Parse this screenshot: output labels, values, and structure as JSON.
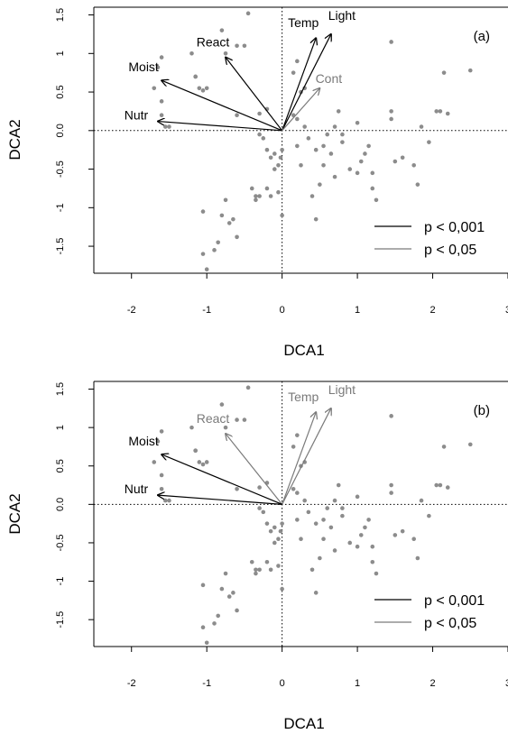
{
  "chart_data": [
    {
      "type": "scatter",
      "panel_label": "(a)",
      "xlabel": "DCA1",
      "ylabel": "DCA2",
      "xlim": [
        -2.5,
        3.0
      ],
      "ylim": [
        -1.85,
        1.6
      ],
      "xticks": [
        -2,
        -1,
        0,
        1,
        2,
        3
      ],
      "yticks": [
        -1.5,
        -1.0,
        -0.5,
        0.0,
        0.5,
        1.0,
        1.5
      ],
      "reference_lines": {
        "x": 0,
        "y": 0,
        "style": "dotted"
      },
      "colors": {
        "points": "#8c8c8c",
        "strong": "#000000",
        "weak": "#7a7a7a"
      },
      "points": [
        [
          -1.7,
          0.55
        ],
        [
          -1.6,
          0.95
        ],
        [
          -1.6,
          0.2
        ],
        [
          -1.5,
          0.05
        ],
        [
          -1.55,
          0.05
        ],
        [
          -1.65,
          0.82
        ],
        [
          -1.6,
          0.38
        ],
        [
          -1.2,
          1.0
        ],
        [
          -1.15,
          0.7
        ],
        [
          -1.1,
          0.55
        ],
        [
          -1.05,
          0.52
        ],
        [
          -1.0,
          0.55
        ],
        [
          -1.15,
          0.7
        ],
        [
          -0.8,
          1.3
        ],
        [
          -0.75,
          1.0
        ],
        [
          -0.6,
          1.1
        ],
        [
          -0.5,
          1.1
        ],
        [
          -0.45,
          1.52
        ],
        [
          -0.6,
          0.2
        ],
        [
          -0.3,
          0.22
        ],
        [
          -0.2,
          0.28
        ],
        [
          -0.3,
          -0.05
        ],
        [
          -0.25,
          -0.1
        ],
        [
          -0.15,
          -0.35
        ],
        [
          -0.1,
          -0.3
        ],
        [
          -0.2,
          -0.25
        ],
        [
          -0.05,
          -0.45
        ],
        [
          -0.1,
          -0.5
        ],
        [
          -0.02,
          -0.35
        ],
        [
          0.0,
          -0.25
        ],
        [
          -0.35,
          -0.85
        ],
        [
          -0.4,
          -0.75
        ],
        [
          -0.35,
          -0.9
        ],
        [
          -0.3,
          -0.85
        ],
        [
          -0.2,
          -0.75
        ],
        [
          -0.15,
          -0.85
        ],
        [
          -0.05,
          -0.8
        ],
        [
          0.0,
          -1.1
        ],
        [
          -0.75,
          -0.9
        ],
        [
          -0.8,
          -1.1
        ],
        [
          -0.65,
          -1.15
        ],
        [
          -0.7,
          -1.2
        ],
        [
          -1.05,
          -1.05
        ],
        [
          -1.05,
          -1.6
        ],
        [
          -1.0,
          -1.8
        ],
        [
          -0.9,
          -1.55
        ],
        [
          -0.85,
          -1.45
        ],
        [
          -0.6,
          -1.38
        ],
        [
          0.15,
          0.75
        ],
        [
          0.2,
          0.9
        ],
        [
          0.25,
          0.5
        ],
        [
          0.3,
          0.55
        ],
        [
          0.2,
          0.15
        ],
        [
          0.3,
          0.05
        ],
        [
          0.15,
          0.2
        ],
        [
          0.2,
          -0.2
        ],
        [
          0.25,
          -0.45
        ],
        [
          0.35,
          -0.1
        ],
        [
          0.45,
          -0.25
        ],
        [
          0.55,
          -0.2
        ],
        [
          0.6,
          -0.05
        ],
        [
          0.65,
          -0.3
        ],
        [
          0.7,
          -0.6
        ],
        [
          0.55,
          -0.45
        ],
        [
          0.4,
          -0.85
        ],
        [
          0.45,
          -1.15
        ],
        [
          0.5,
          -0.7
        ],
        [
          0.8,
          -0.15
        ],
        [
          0.7,
          0.05
        ],
        [
          0.8,
          -0.05
        ],
        [
          0.9,
          -0.5
        ],
        [
          1.0,
          -0.55
        ],
        [
          1.05,
          -0.4
        ],
        [
          1.1,
          -0.3
        ],
        [
          1.15,
          -0.2
        ],
        [
          1.2,
          -0.55
        ],
        [
          1.25,
          -0.9
        ],
        [
          1.2,
          -0.75
        ],
        [
          0.75,
          0.25
        ],
        [
          1.0,
          0.1
        ],
        [
          1.45,
          1.15
        ],
        [
          1.45,
          0.25
        ],
        [
          1.45,
          0.15
        ],
        [
          1.5,
          -0.4
        ],
        [
          1.6,
          -0.35
        ],
        [
          1.75,
          -0.45
        ],
        [
          1.8,
          -0.7
        ],
        [
          1.85,
          0.05
        ],
        [
          1.95,
          -0.15
        ],
        [
          2.05,
          0.25
        ],
        [
          2.1,
          0.25
        ],
        [
          2.2,
          0.22
        ],
        [
          2.15,
          0.75
        ],
        [
          2.5,
          0.78
        ]
      ],
      "vectors": [
        {
          "label": "Light",
          "x": 0.65,
          "y": 1.25,
          "significance": "p < 0,001"
        },
        {
          "label": "Temp",
          "x": 0.45,
          "y": 1.2,
          "significance": "p < 0,001"
        },
        {
          "label": "React",
          "x": -0.75,
          "y": 0.95,
          "significance": "p < 0,001"
        },
        {
          "label": "Moist",
          "x": -1.6,
          "y": 0.65,
          "significance": "p < 0,001"
        },
        {
          "label": "Nutr",
          "x": -1.65,
          "y": 0.12,
          "significance": "p < 0,001"
        },
        {
          "label": "Cont",
          "x": 0.5,
          "y": 0.55,
          "significance": "p < 0,05"
        }
      ],
      "legend": {
        "placement": "bottom-right",
        "entries": [
          {
            "label": "p < 0,001",
            "color": "#000000"
          },
          {
            "label": "p < 0,05",
            "color": "#7a7a7a"
          }
        ]
      }
    },
    {
      "type": "scatter",
      "panel_label": "(b)",
      "xlabel": "DCA1",
      "ylabel": "DCA2",
      "xlim": [
        -2.5,
        3.0
      ],
      "ylim": [
        -1.85,
        1.6
      ],
      "xticks": [
        -2,
        -1,
        0,
        1,
        2,
        3
      ],
      "yticks": [
        -1.5,
        -1.0,
        -0.5,
        0.0,
        0.5,
        1.0,
        1.5
      ],
      "reference_lines": {
        "x": 0,
        "y": 0,
        "style": "dotted"
      },
      "colors": {
        "points": "#8c8c8c",
        "strong": "#000000",
        "weak": "#7a7a7a"
      },
      "points": [
        [
          -1.7,
          0.55
        ],
        [
          -1.6,
          0.95
        ],
        [
          -1.6,
          0.2
        ],
        [
          -1.5,
          0.05
        ],
        [
          -1.55,
          0.05
        ],
        [
          -1.65,
          0.82
        ],
        [
          -1.6,
          0.38
        ],
        [
          -1.2,
          1.0
        ],
        [
          -1.15,
          0.7
        ],
        [
          -1.1,
          0.55
        ],
        [
          -1.05,
          0.52
        ],
        [
          -1.0,
          0.55
        ],
        [
          -1.15,
          0.7
        ],
        [
          -0.8,
          1.3
        ],
        [
          -0.75,
          1.0
        ],
        [
          -0.6,
          1.1
        ],
        [
          -0.5,
          1.1
        ],
        [
          -0.45,
          1.52
        ],
        [
          -0.6,
          0.2
        ],
        [
          -0.3,
          0.22
        ],
        [
          -0.2,
          0.28
        ],
        [
          -0.3,
          -0.05
        ],
        [
          -0.25,
          -0.1
        ],
        [
          -0.15,
          -0.35
        ],
        [
          -0.1,
          -0.3
        ],
        [
          -0.2,
          -0.25
        ],
        [
          -0.05,
          -0.45
        ],
        [
          -0.1,
          -0.5
        ],
        [
          -0.02,
          -0.35
        ],
        [
          0.0,
          -0.25
        ],
        [
          -0.35,
          -0.85
        ],
        [
          -0.4,
          -0.75
        ],
        [
          -0.35,
          -0.9
        ],
        [
          -0.3,
          -0.85
        ],
        [
          -0.2,
          -0.75
        ],
        [
          -0.15,
          -0.85
        ],
        [
          -0.05,
          -0.8
        ],
        [
          0.0,
          -1.1
        ],
        [
          -0.75,
          -0.9
        ],
        [
          -0.8,
          -1.1
        ],
        [
          -0.65,
          -1.15
        ],
        [
          -0.7,
          -1.2
        ],
        [
          -1.05,
          -1.05
        ],
        [
          -1.05,
          -1.6
        ],
        [
          -1.0,
          -1.8
        ],
        [
          -0.9,
          -1.55
        ],
        [
          -0.85,
          -1.45
        ],
        [
          -0.6,
          -1.38
        ],
        [
          0.15,
          0.75
        ],
        [
          0.2,
          0.9
        ],
        [
          0.25,
          0.5
        ],
        [
          0.3,
          0.55
        ],
        [
          0.2,
          0.15
        ],
        [
          0.3,
          0.05
        ],
        [
          0.15,
          0.2
        ],
        [
          0.2,
          -0.2
        ],
        [
          0.25,
          -0.45
        ],
        [
          0.35,
          -0.1
        ],
        [
          0.45,
          -0.25
        ],
        [
          0.55,
          -0.2
        ],
        [
          0.6,
          -0.05
        ],
        [
          0.65,
          -0.3
        ],
        [
          0.7,
          -0.6
        ],
        [
          0.55,
          -0.45
        ],
        [
          0.4,
          -0.85
        ],
        [
          0.45,
          -1.15
        ],
        [
          0.5,
          -0.7
        ],
        [
          0.8,
          -0.15
        ],
        [
          0.7,
          0.05
        ],
        [
          0.8,
          -0.05
        ],
        [
          0.9,
          -0.5
        ],
        [
          1.0,
          -0.55
        ],
        [
          1.05,
          -0.4
        ],
        [
          1.1,
          -0.3
        ],
        [
          1.15,
          -0.2
        ],
        [
          1.2,
          -0.55
        ],
        [
          1.25,
          -0.9
        ],
        [
          1.2,
          -0.75
        ],
        [
          0.75,
          0.25
        ],
        [
          1.0,
          0.1
        ],
        [
          1.45,
          1.15
        ],
        [
          1.45,
          0.25
        ],
        [
          1.45,
          0.15
        ],
        [
          1.5,
          -0.4
        ],
        [
          1.6,
          -0.35
        ],
        [
          1.75,
          -0.45
        ],
        [
          1.8,
          -0.7
        ],
        [
          1.85,
          0.05
        ],
        [
          1.95,
          -0.15
        ],
        [
          2.05,
          0.25
        ],
        [
          2.1,
          0.25
        ],
        [
          2.2,
          0.22
        ],
        [
          2.15,
          0.75
        ],
        [
          2.5,
          0.78
        ]
      ],
      "vectors": [
        {
          "label": "Light",
          "x": 0.65,
          "y": 1.25,
          "significance": "p < 0,05"
        },
        {
          "label": "Temp",
          "x": 0.45,
          "y": 1.2,
          "significance": "p < 0,05"
        },
        {
          "label": "React",
          "x": -0.75,
          "y": 0.92,
          "significance": "p < 0,05"
        },
        {
          "label": "Moist",
          "x": -1.6,
          "y": 0.65,
          "significance": "p < 0,001"
        },
        {
          "label": "Nutr",
          "x": -1.65,
          "y": 0.12,
          "significance": "p < 0,001"
        }
      ],
      "legend": {
        "placement": "bottom-right",
        "entries": [
          {
            "label": "p < 0,001",
            "color": "#000000"
          },
          {
            "label": "p < 0,05",
            "color": "#7a7a7a"
          }
        ]
      }
    }
  ]
}
